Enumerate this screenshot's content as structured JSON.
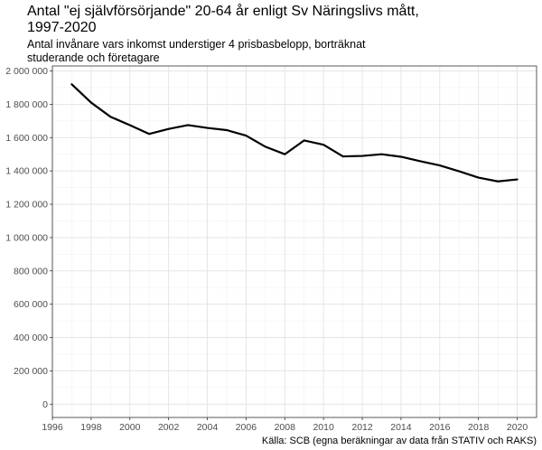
{
  "title": "Antal \"ej självförsörjande\" 20-64 år enligt Sv Näringslivs mått,\n1997-2020",
  "title_lines": [
    "Antal \"ej självförsörjande\" 20-64 år enligt Sv Näringslivs mått,",
    "1997-2020"
  ],
  "subtitle_lines": [
    "Antal invånare vars inkomst understiger 4 prisbasbelopp, borträknat",
    "studerande och företagare"
  ],
  "caption": "Källa: SCB (egna beräkningar av data från STATIV och RAKS)",
  "chart_data": {
    "type": "line",
    "title": "Antal \"ej självförsörjande\" 20-64 år enligt Sv Näringslivs mått, 1997-2020",
    "subtitle": "Antal invånare vars inkomst understiger 4 prisbasbelopp, borträknat studerande och företagare",
    "xlabel": "",
    "ylabel": "",
    "xlim": [
      1996,
      2021
    ],
    "ylim": [
      -80000,
      2030000
    ],
    "x_ticks": [
      1996,
      1998,
      2000,
      2002,
      2004,
      2006,
      2008,
      2010,
      2012,
      2014,
      2016,
      2018,
      2020
    ],
    "y_ticks": [
      0,
      200000,
      400000,
      600000,
      800000,
      1000000,
      1200000,
      1400000,
      1600000,
      1800000,
      2000000
    ],
    "y_tick_labels": [
      "0",
      "200 000",
      "400 000",
      "600 000",
      "800 000",
      "1 000 000",
      "1 200 000",
      "1 400 000",
      "1 600 000",
      "1 800 000",
      "2 000 000"
    ],
    "grid": true,
    "line_color": "#000000",
    "series": [
      {
        "x": [
          1997,
          1998,
          1999,
          2000,
          2001,
          2002,
          2003,
          2004,
          2005,
          2006,
          2007,
          2008,
          2009,
          2010,
          2011,
          2012,
          2013,
          2014,
          2015,
          2016,
          2017,
          2018,
          2019,
          2020
        ],
        "values": [
          1920000,
          1810000,
          1725000,
          1675000,
          1622000,
          1652000,
          1675000,
          1658000,
          1645000,
          1612000,
          1545000,
          1500000,
          1583000,
          1557000,
          1487000,
          1490000,
          1500000,
          1485000,
          1458000,
          1433000,
          1398000,
          1360000,
          1337000,
          1349000
        ]
      }
    ]
  }
}
